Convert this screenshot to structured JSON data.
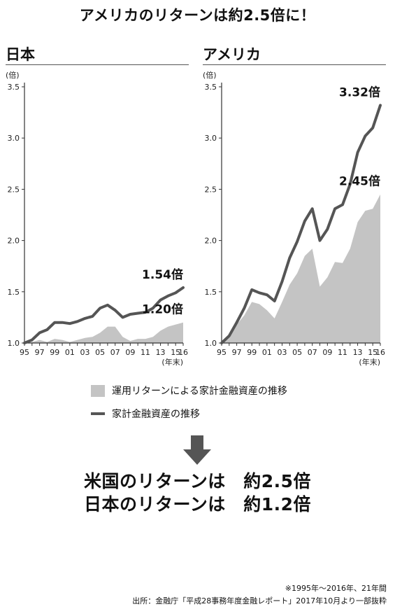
{
  "headline": "アメリカのリターンは約2.5倍に！",
  "chart_data": [
    {
      "type": "area",
      "title": "日本",
      "unit_label": "(倍)",
      "year_end_label": "(年末)",
      "x": [
        "95",
        "96",
        "97",
        "98",
        "99",
        "00",
        "01",
        "02",
        "03",
        "04",
        "05",
        "06",
        "07",
        "08",
        "09",
        "10",
        "11",
        "12",
        "13",
        "14",
        "15",
        "16"
      ],
      "x_tick_labels": [
        "95",
        "97",
        "99",
        "01",
        "03",
        "05",
        "07",
        "09",
        "11",
        "13",
        "15",
        "16"
      ],
      "ylim": [
        1.0,
        3.5
      ],
      "y_ticks": [
        "1.0",
        "1.5",
        "2.0",
        "2.5",
        "3.0",
        "3.5"
      ],
      "grid": false,
      "series": [
        {
          "name": "運用リターンによる家計金融資産の推移",
          "kind": "area",
          "color": "#c4c4c4",
          "values": [
            1.0,
            1.01,
            1.03,
            1.01,
            1.04,
            1.03,
            1.01,
            1.03,
            1.05,
            1.06,
            1.1,
            1.16,
            1.16,
            1.06,
            1.02,
            1.04,
            1.04,
            1.06,
            1.12,
            1.16,
            1.18,
            1.2
          ]
        },
        {
          "name": "家計金融資産の推移",
          "kind": "line",
          "color": "#555555",
          "values": [
            1.0,
            1.03,
            1.1,
            1.13,
            1.2,
            1.2,
            1.19,
            1.21,
            1.24,
            1.26,
            1.34,
            1.37,
            1.32,
            1.25,
            1.28,
            1.29,
            1.3,
            1.34,
            1.42,
            1.46,
            1.49,
            1.54
          ]
        }
      ],
      "end_labels": {
        "line": "1.54倍",
        "area": "1.20倍"
      }
    },
    {
      "type": "area",
      "title": "アメリカ",
      "unit_label": "(倍)",
      "year_end_label": "(年末)",
      "x": [
        "95",
        "96",
        "97",
        "98",
        "99",
        "00",
        "01",
        "02",
        "03",
        "04",
        "05",
        "06",
        "07",
        "08",
        "09",
        "10",
        "11",
        "12",
        "13",
        "14",
        "15",
        "16"
      ],
      "x_tick_labels": [
        "95",
        "97",
        "99",
        "01",
        "03",
        "05",
        "07",
        "09",
        "11",
        "13",
        "15",
        "16"
      ],
      "ylim": [
        1.0,
        3.5
      ],
      "y_ticks": [
        "1.0",
        "1.5",
        "2.0",
        "2.5",
        "3.0",
        "3.5"
      ],
      "grid": false,
      "series": [
        {
          "name": "運用リターンによる家計金融資産の推移",
          "kind": "area",
          "color": "#c4c4c4",
          "values": [
            1.0,
            1.07,
            1.18,
            1.27,
            1.4,
            1.38,
            1.32,
            1.24,
            1.4,
            1.57,
            1.68,
            1.85,
            1.92,
            1.55,
            1.64,
            1.79,
            1.78,
            1.92,
            2.18,
            2.29,
            2.31,
            2.45
          ]
        },
        {
          "name": "家計金融資産の推移",
          "kind": "line",
          "color": "#555555",
          "values": [
            1.0,
            1.07,
            1.2,
            1.34,
            1.52,
            1.49,
            1.47,
            1.41,
            1.6,
            1.83,
            1.99,
            2.19,
            2.31,
            2.0,
            2.11,
            2.31,
            2.35,
            2.55,
            2.86,
            3.02,
            3.1,
            3.32
          ]
        }
      ],
      "end_labels": {
        "line": "3.32倍",
        "area": "2.45倍"
      }
    }
  ],
  "legend": {
    "area_label": "運用リターンによる家計金融資産の推移",
    "line_label": "家計金融資産の推移"
  },
  "conclusion": {
    "line1": "米国のリターンは　約2.5倍",
    "line2": "日本のリターンは　約1.2倍"
  },
  "footnote": {
    "line1": "※1995年～2016年、21年間",
    "line2": "出所：金融庁「平成28事務年度金融レポート」2017年10月より一部抜粋"
  },
  "colors": {
    "area": "#c4c4c4",
    "line": "#555555",
    "axis": "#333333"
  }
}
